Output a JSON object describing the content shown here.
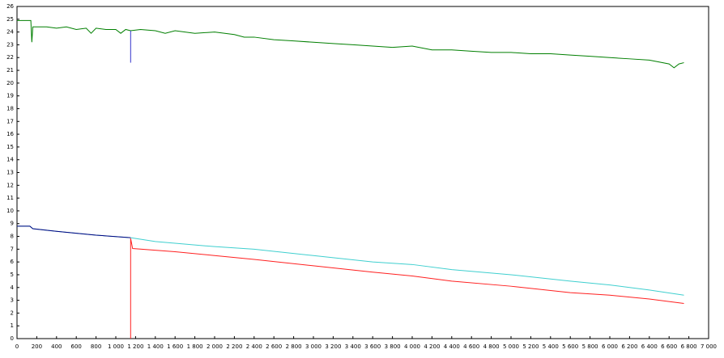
{
  "chart_data": {
    "type": "line",
    "xlim": [
      0,
      7000
    ],
    "xticks": [
      0,
      200,
      400,
      600,
      800,
      {
        "value": 1000,
        "label": "1 000"
      },
      {
        "value": 1200,
        "label": "1 200"
      },
      {
        "value": 1400,
        "label": "1 400"
      },
      {
        "value": 1600,
        "label": "1 600"
      },
      {
        "value": 1800,
        "label": "1 800"
      },
      {
        "value": 2000,
        "label": "2 000"
      },
      {
        "value": 2200,
        "label": "2 200"
      },
      {
        "value": 2400,
        "label": "2 400"
      },
      {
        "value": 2600,
        "label": "2 600"
      },
      {
        "value": 2800,
        "label": "2 800"
      },
      {
        "value": 3000,
        "label": "3 000"
      },
      {
        "value": 3200,
        "label": "3 200"
      },
      {
        "value": 3400,
        "label": "3 400"
      },
      {
        "value": 3600,
        "label": "3 600"
      },
      {
        "value": 3800,
        "label": "3 800"
      },
      {
        "value": 4000,
        "label": "4 000"
      },
      {
        "value": 4200,
        "label": "4 200"
      },
      {
        "value": 4400,
        "label": "4 400"
      },
      {
        "value": 4600,
        "label": "4 600"
      },
      {
        "value": 4800,
        "label": "4 800"
      },
      {
        "value": 5000,
        "label": "5 000"
      },
      {
        "value": 5200,
        "label": "5 200"
      },
      {
        "value": 5400,
        "label": "5 400"
      },
      {
        "value": 5600,
        "label": "5 600"
      },
      {
        "value": 5800,
        "label": "5 800"
      },
      {
        "value": 6000,
        "label": "6 000"
      },
      {
        "value": 6200,
        "label": "6 200"
      },
      {
        "value": 6400,
        "label": "6 400"
      },
      {
        "value": 6600,
        "label": "6 600"
      },
      {
        "value": 6800,
        "label": "6 800"
      },
      {
        "value": 7000,
        "label": "7 000"
      }
    ],
    "ylim": [
      0,
      26
    ],
    "yticks": [
      0,
      1,
      2,
      3,
      4,
      5,
      6,
      7,
      8,
      9,
      10,
      11,
      12,
      13,
      14,
      15,
      16,
      17,
      18,
      19,
      20,
      21,
      22,
      23,
      24,
      25,
      26
    ],
    "series": [
      {
        "color": "#007f00",
        "x": [
          0,
          140,
          150,
          160,
          300,
          400,
          500,
          600,
          700,
          750,
          800,
          900,
          1000,
          1050,
          1100,
          1150,
          1250,
          1400,
          1500,
          1600,
          1800,
          2000,
          2200,
          2300,
          2400,
          2600,
          2800,
          3000,
          3200,
          3400,
          3600,
          3800,
          4000,
          4200,
          4400,
          4600,
          4800,
          5000,
          5200,
          5400,
          5600,
          5800,
          6000,
          6200,
          6400,
          6600,
          6650,
          6700,
          6750
        ],
        "values": [
          24.9,
          24.9,
          23.2,
          24.4,
          24.4,
          24.3,
          24.4,
          24.2,
          24.3,
          23.9,
          24.3,
          24.2,
          24.2,
          23.9,
          24.2,
          24.1,
          24.2,
          24.1,
          23.9,
          24.1,
          23.9,
          24.0,
          23.8,
          23.6,
          23.6,
          23.4,
          23.3,
          23.2,
          23.1,
          23.0,
          22.9,
          22.8,
          22.9,
          22.6,
          22.6,
          22.5,
          22.4,
          22.4,
          22.3,
          22.3,
          22.2,
          22.1,
          22.0,
          21.9,
          21.8,
          21.5,
          21.2,
          21.5,
          21.6
        ]
      },
      {
        "color": "#3333cc",
        "x": [
          1150,
          1150
        ],
        "values": [
          24.1,
          21.6
        ]
      },
      {
        "color": "#3fcfcf",
        "x": [
          0,
          130,
          160,
          400,
          800,
          1150,
          1400,
          2000,
          2400,
          3000,
          3600,
          4000,
          4400,
          5000,
          5600,
          6000,
          6400,
          6750
        ],
        "values": [
          8.8,
          8.8,
          8.6,
          8.4,
          8.1,
          7.9,
          7.6,
          7.2,
          7.0,
          6.5,
          6.0,
          5.8,
          5.4,
          5.0,
          4.5,
          4.2,
          3.8,
          3.4
        ]
      },
      {
        "color": "#000080",
        "x": [
          0,
          130,
          160,
          400,
          800,
          1150
        ],
        "values": [
          8.8,
          8.8,
          8.6,
          8.4,
          8.1,
          7.9
        ]
      },
      {
        "color": "#ff2020",
        "x": [
          1150,
          1150,
          1170,
          1600,
          2000,
          2400,
          3000,
          3600,
          4000,
          4400,
          5000,
          5600,
          6000,
          6400,
          6750
        ],
        "values": [
          0,
          7.85,
          7.05,
          6.8,
          6.5,
          6.2,
          5.7,
          5.2,
          4.9,
          4.5,
          4.1,
          3.6,
          3.4,
          3.1,
          2.75
        ]
      }
    ]
  }
}
